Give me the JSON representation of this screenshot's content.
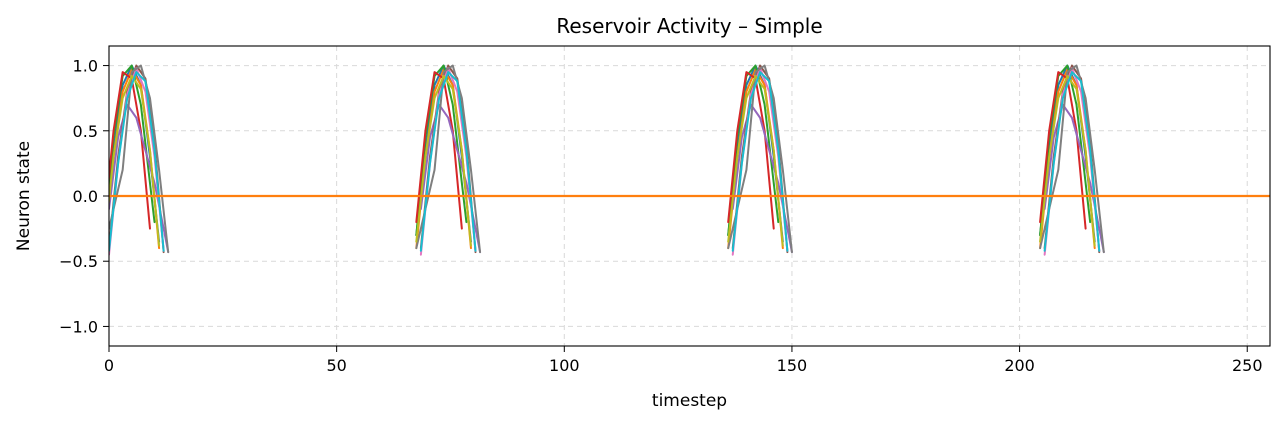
{
  "chart_data": {
    "type": "line",
    "title": "Reservoir Activity – Simple",
    "xlabel": "timestep",
    "ylabel": "Neuron state",
    "xlim": [
      0,
      255
    ],
    "ylim": [
      -1.15,
      1.15
    ],
    "xticks": [
      0,
      50,
      100,
      150,
      200,
      250
    ],
    "yticks": [
      -1.0,
      -0.5,
      0.0,
      0.5,
      1.0
    ],
    "ytick_labels": [
      "−1.0",
      "−0.5",
      "0.0",
      "0.5",
      "1.0"
    ],
    "grid": true,
    "legend": "none",
    "cycle_period": 68.5,
    "colors": [
      "#1f77b4",
      "#ff7f0e",
      "#2ca02c",
      "#d62728",
      "#9467bd",
      "#8c564b",
      "#e377c2",
      "#7f7f7f",
      "#bcbd22",
      "#17becf"
    ],
    "series": [
      {
        "onset": -1,
        "x": [
          0,
          2,
          4,
          6,
          8,
          10,
          12
        ],
        "y": [
          -0.3,
          0.35,
          0.85,
          1.0,
          0.85,
          0.3,
          -0.35
        ]
      },
      {
        "onset": -1,
        "x": [
          0,
          2,
          4,
          6,
          8,
          10,
          12
        ],
        "y": [
          -0.4,
          0.3,
          0.8,
          0.97,
          0.85,
          0.35,
          -0.4
        ]
      },
      {
        "onset": -1,
        "x": [
          0,
          2,
          4,
          6,
          8,
          10,
          11
        ],
        "y": [
          -0.3,
          0.45,
          0.92,
          1.0,
          0.7,
          0.1,
          -0.2
        ]
      },
      {
        "onset": -1,
        "x": [
          0,
          2,
          4,
          6,
          8,
          10
        ],
        "y": [
          -0.2,
          0.5,
          0.95,
          0.9,
          0.5,
          -0.25
        ]
      },
      {
        "onset": 0,
        "x": [
          0,
          2,
          4,
          6,
          8,
          10,
          12,
          13
        ],
        "y": [
          -0.1,
          0.45,
          0.7,
          0.6,
          0.35,
          0.1,
          -0.25,
          -0.43
        ]
      },
      {
        "onset": 0,
        "x": [
          0,
          2,
          4,
          6,
          8,
          10,
          12
        ],
        "y": [
          -0.4,
          0.3,
          0.8,
          1.0,
          0.9,
          0.4,
          -0.43
        ]
      },
      {
        "onset": 0,
        "x": [
          0,
          2,
          4,
          6,
          8,
          10,
          12
        ],
        "y": [
          -0.45,
          0.25,
          0.78,
          0.98,
          0.8,
          0.3,
          -0.42
        ]
      },
      {
        "onset": -1,
        "x": [
          0,
          2,
          4,
          6,
          8,
          10,
          12,
          14
        ],
        "y": [
          -0.4,
          -0.1,
          0.2,
          0.95,
          1.0,
          0.75,
          0.2,
          -0.43
        ]
      },
      {
        "onset": -1,
        "x": [
          0,
          2,
          4,
          6,
          8,
          10,
          12
        ],
        "y": [
          -0.35,
          0.3,
          0.75,
          0.92,
          0.82,
          0.35,
          -0.38
        ]
      },
      {
        "onset": 0,
        "x": [
          0,
          2,
          4,
          6,
          8,
          10,
          12
        ],
        "y": [
          -0.42,
          0.25,
          0.75,
          0.95,
          0.88,
          0.35,
          -0.42
        ]
      }
    ],
    "baseline": {
      "x": [
        0,
        255
      ],
      "y": [
        0.0,
        0.0
      ]
    }
  }
}
